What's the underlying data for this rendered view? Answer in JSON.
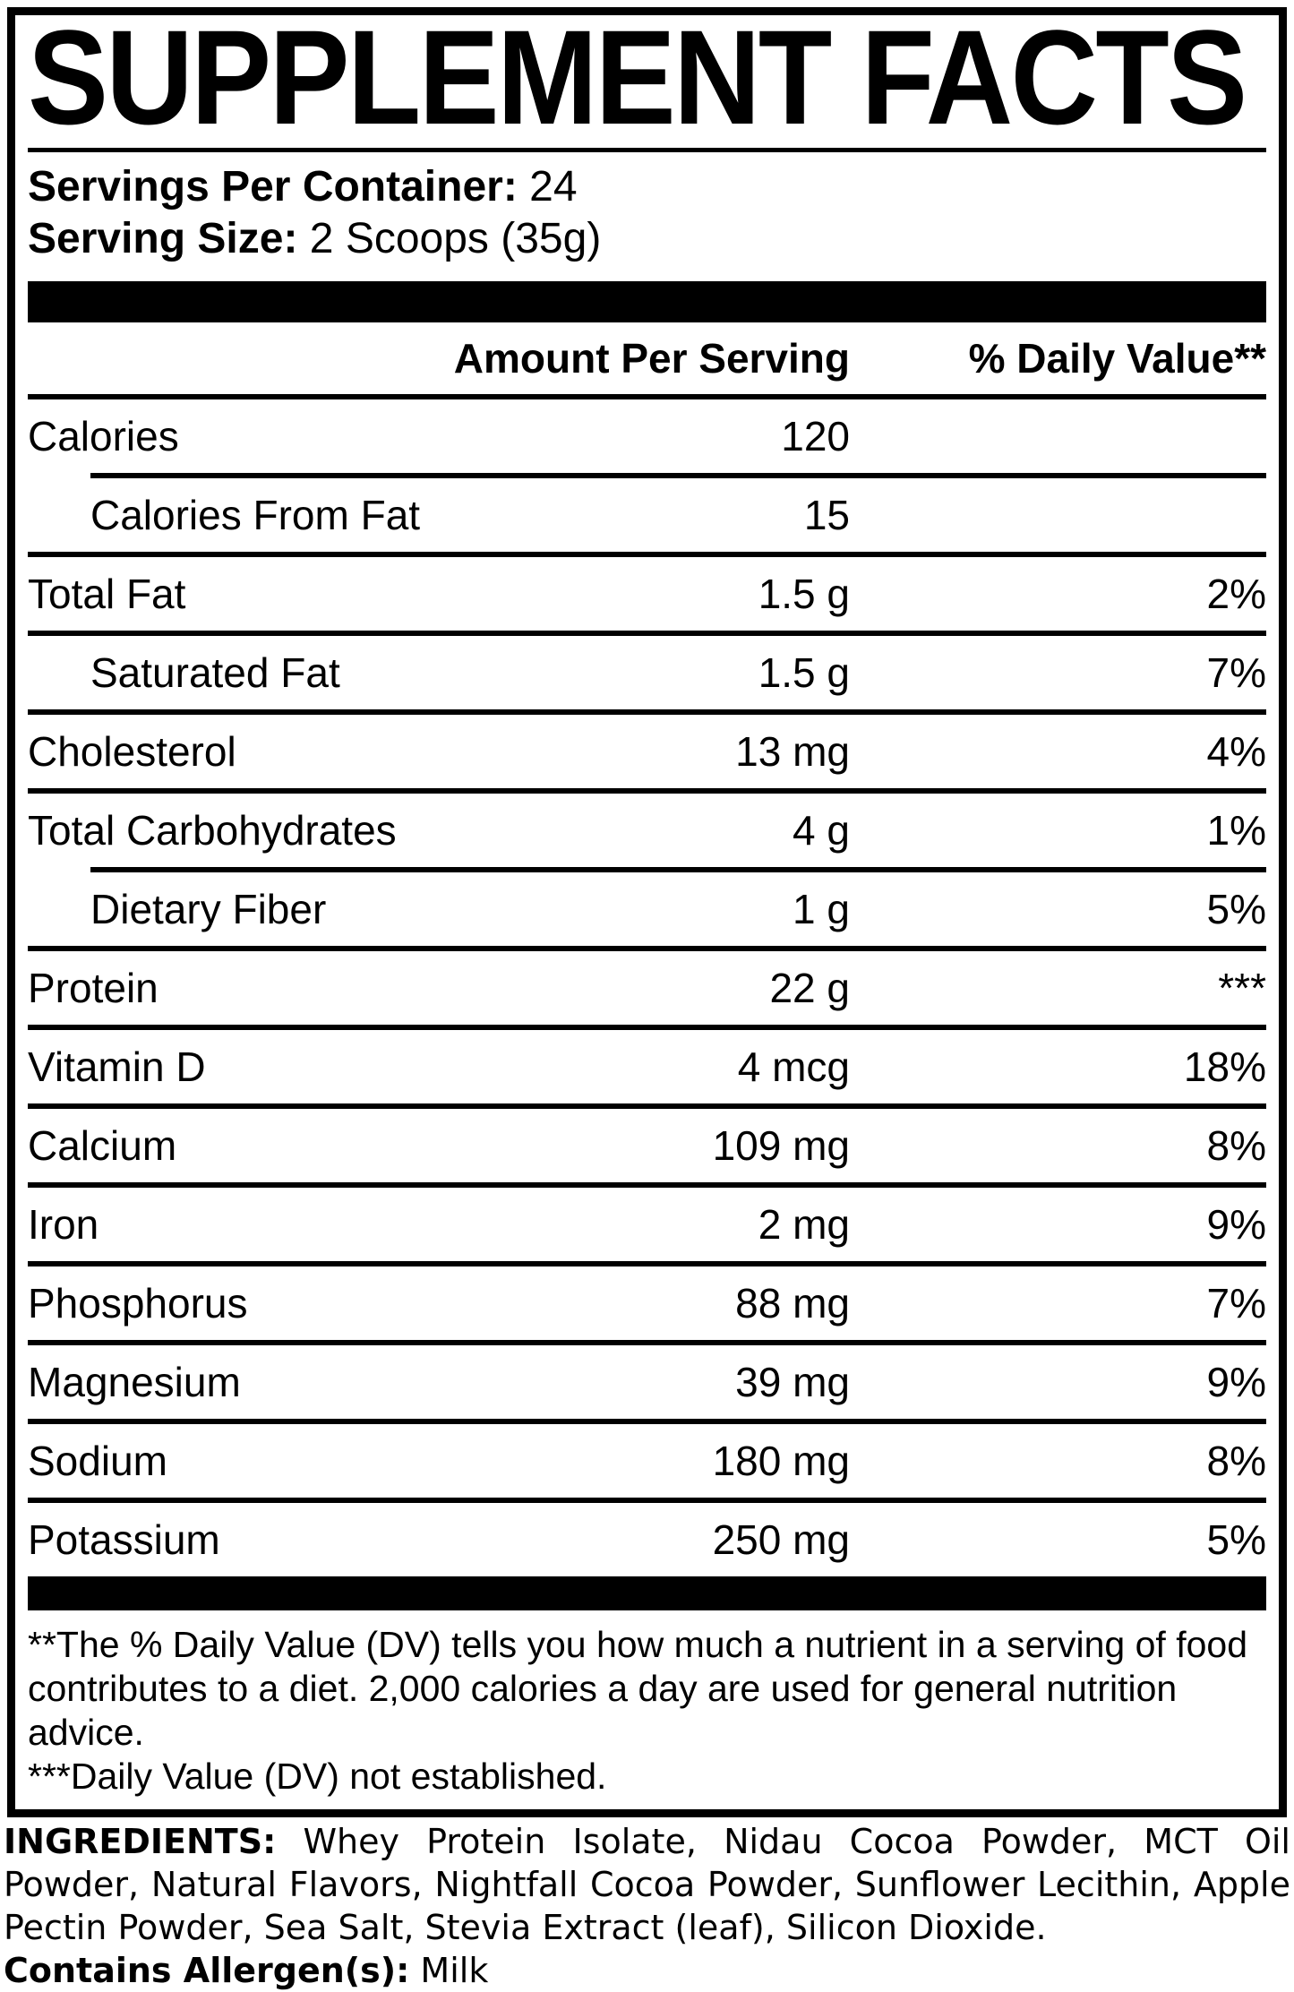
{
  "panel": {
    "title": "SUPPLEMENT FACTS",
    "servings_label": "Servings Per Container:",
    "servings_value": "24",
    "serving_size_label": "Serving Size:",
    "serving_size_value": "2 Scoops (35g)"
  },
  "table": {
    "amount_header": "Amount Per Serving",
    "dv_header": "% Daily Value**",
    "rows": [
      {
        "label": "Calories",
        "amount": "120",
        "dv": ""
      },
      {
        "label": "Calories From Fat",
        "amount": "15",
        "dv": ""
      },
      {
        "label": "Total Fat",
        "amount": "1.5 g",
        "dv": "2%"
      },
      {
        "label": "Saturated Fat",
        "amount": "1.5 g",
        "dv": "7%"
      },
      {
        "label": "Cholesterol",
        "amount": "13 mg",
        "dv": "4%"
      },
      {
        "label": "Total Carbohydrates",
        "amount": "4 g",
        "dv": "1%"
      },
      {
        "label": "Dietary Fiber",
        "amount": "1 g",
        "dv": "5%"
      },
      {
        "label": "Protein",
        "amount": "22 g",
        "dv": "***"
      },
      {
        "label": "Vitamin D",
        "amount": "4 mcg",
        "dv": "18%"
      },
      {
        "label": "Calcium",
        "amount": "109 mg",
        "dv": "8%"
      },
      {
        "label": "Iron",
        "amount": "2 mg",
        "dv": "9%"
      },
      {
        "label": "Phosphorus",
        "amount": "88 mg",
        "dv": "7%"
      },
      {
        "label": "Magnesium",
        "amount": "39 mg",
        "dv": "9%"
      },
      {
        "label": "Sodium",
        "amount": "180 mg",
        "dv": "8%"
      },
      {
        "label": "Potassium",
        "amount": "250 mg",
        "dv": "5%"
      }
    ]
  },
  "footnotes": {
    "daily_value_note": "**The % Daily Value (DV) tells you how much a nutrient in a serving of food contributes to a diet. 2,000 calories a day are used for general nutrition advice.",
    "not_established_note": "***Daily Value (DV) not established."
  },
  "ingredients": {
    "label": "INGREDIENTS:",
    "text": "Whey Protein Isolate, Nidau Cocoa Powder, MCT Oil Powder, Natural Flavors, Nightfall Cocoa Powder, Sunflower Lecithin, Apple Pectin Powder, Sea Salt, Stevia Extract (leaf), Silicon Dioxide."
  },
  "allergen": {
    "label": "Contains Allergen(s):",
    "value": "Milk"
  },
  "colors": {
    "text": "#000000",
    "background": "#ffffff"
  }
}
